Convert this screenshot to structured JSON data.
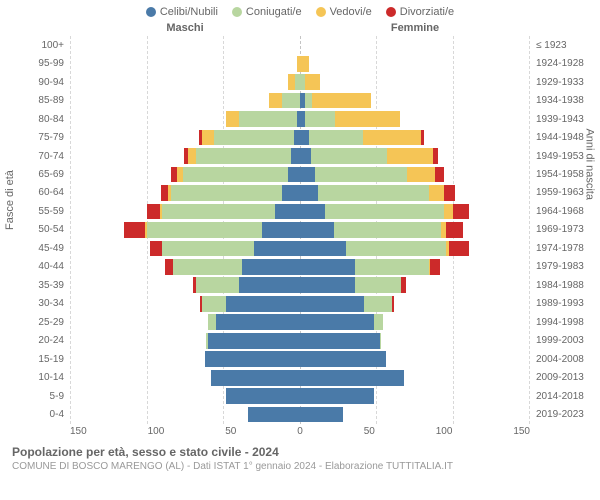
{
  "legend": [
    {
      "label": "Celibi/Nubili",
      "color": "#4a7aa8"
    },
    {
      "label": "Coniugati/e",
      "color": "#b8d6a0"
    },
    {
      "label": "Vedovi/e",
      "color": "#f5c556"
    },
    {
      "label": "Divorziati/e",
      "color": "#cc2a2a"
    }
  ],
  "gender": {
    "male": "Maschi",
    "female": "Femmine"
  },
  "y_left_title": "Fasce di età",
  "y_right_title": "Anni di nascita",
  "x_max": 150,
  "x_ticks": [
    "150",
    "100",
    "50",
    "0",
    "50",
    "100",
    "150"
  ],
  "colors": {
    "celibi": "#4a7aa8",
    "coniugati": "#b8d6a0",
    "vedovi": "#f5c556",
    "divorziati": "#cc2a2a",
    "grid": "#d8d8d8",
    "center_grid": "#c4c4c4",
    "text": "#666666"
  },
  "rows": [
    {
      "age": "100+",
      "birth": "≤ 1923",
      "m": [
        0,
        0,
        0,
        0
      ],
      "f": [
        0,
        0,
        0,
        0
      ]
    },
    {
      "age": "95-99",
      "birth": "1924-1928",
      "m": [
        0,
        0,
        2,
        0
      ],
      "f": [
        0,
        0,
        6,
        0
      ]
    },
    {
      "age": "90-94",
      "birth": "1929-1933",
      "m": [
        0,
        3,
        5,
        0
      ],
      "f": [
        0,
        3,
        10,
        0
      ]
    },
    {
      "age": "85-89",
      "birth": "1934-1938",
      "m": [
        0,
        12,
        8,
        0
      ],
      "f": [
        3,
        5,
        38,
        0
      ]
    },
    {
      "age": "80-84",
      "birth": "1939-1943",
      "m": [
        2,
        38,
        8,
        0
      ],
      "f": [
        3,
        20,
        42,
        0
      ]
    },
    {
      "age": "75-79",
      "birth": "1944-1948",
      "m": [
        4,
        52,
        8,
        2
      ],
      "f": [
        6,
        35,
        38,
        2
      ]
    },
    {
      "age": "70-74",
      "birth": "1949-1953",
      "m": [
        6,
        62,
        5,
        3
      ],
      "f": [
        7,
        50,
        30,
        3
      ]
    },
    {
      "age": "65-69",
      "birth": "1954-1958",
      "m": [
        8,
        68,
        4,
        4
      ],
      "f": [
        10,
        60,
        18,
        6
      ]
    },
    {
      "age": "60-64",
      "birth": "1959-1963",
      "m": [
        12,
        72,
        2,
        5
      ],
      "f": [
        12,
        72,
        10,
        7
      ]
    },
    {
      "age": "55-59",
      "birth": "1964-1968",
      "m": [
        16,
        74,
        1,
        9
      ],
      "f": [
        16,
        78,
        6,
        10
      ]
    },
    {
      "age": "50-54",
      "birth": "1969-1973",
      "m": [
        25,
        75,
        1,
        14
      ],
      "f": [
        22,
        70,
        3,
        11
      ]
    },
    {
      "age": "45-49",
      "birth": "1974-1978",
      "m": [
        30,
        60,
        0,
        8
      ],
      "f": [
        30,
        65,
        2,
        13
      ]
    },
    {
      "age": "40-44",
      "birth": "1979-1983",
      "m": [
        38,
        45,
        0,
        5
      ],
      "f": [
        36,
        48,
        1,
        6
      ]
    },
    {
      "age": "35-39",
      "birth": "1984-1988",
      "m": [
        40,
        28,
        0,
        2
      ],
      "f": [
        36,
        30,
        0,
        3
      ]
    },
    {
      "age": "30-34",
      "birth": "1989-1993",
      "m": [
        48,
        16,
        0,
        1
      ],
      "f": [
        42,
        18,
        0,
        1
      ]
    },
    {
      "age": "25-29",
      "birth": "1994-1998",
      "m": [
        55,
        5,
        0,
        0
      ],
      "f": [
        48,
        6,
        0,
        0
      ]
    },
    {
      "age": "20-24",
      "birth": "1999-2003",
      "m": [
        60,
        1,
        0,
        0
      ],
      "f": [
        52,
        1,
        0,
        0
      ]
    },
    {
      "age": "15-19",
      "birth": "2004-2008",
      "m": [
        62,
        0,
        0,
        0
      ],
      "f": [
        56,
        0,
        0,
        0
      ]
    },
    {
      "age": "10-14",
      "birth": "2009-2013",
      "m": [
        58,
        0,
        0,
        0
      ],
      "f": [
        68,
        0,
        0,
        0
      ]
    },
    {
      "age": "5-9",
      "birth": "2014-2018",
      "m": [
        48,
        0,
        0,
        0
      ],
      "f": [
        48,
        0,
        0,
        0
      ]
    },
    {
      "age": "0-4",
      "birth": "2019-2023",
      "m": [
        34,
        0,
        0,
        0
      ],
      "f": [
        28,
        0,
        0,
        0
      ]
    }
  ],
  "footer": {
    "title": "Popolazione per età, sesso e stato civile - 2024",
    "sub": "COMUNE DI BOSCO MARENGO (AL) - Dati ISTAT 1° gennaio 2024 - Elaborazione TUTTITALIA.IT"
  }
}
